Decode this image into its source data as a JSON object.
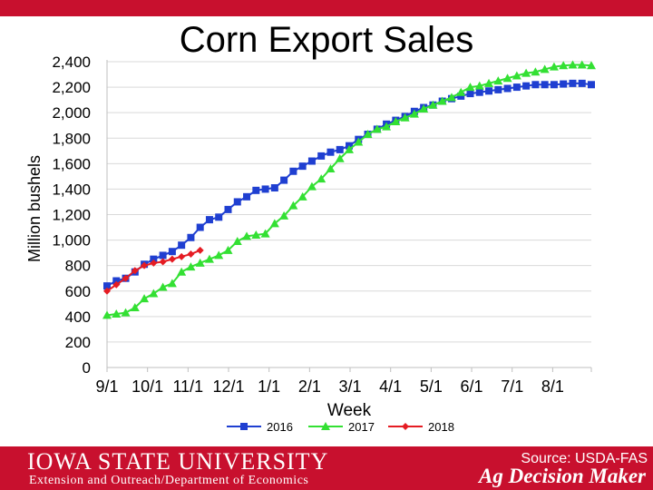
{
  "footer": {
    "university": "IOWA STATE UNIVERSITY",
    "department": "Extension and Outreach/Department of Economics",
    "brand": "Ag Decision Maker",
    "source": "Source: USDA-FAS"
  },
  "colors": {
    "band": "#c8102e",
    "s2016": "#1f3fd1",
    "s2017": "#33e033",
    "s2018": "#e51c23",
    "grid": "#d9d9d9"
  },
  "chart_data": {
    "type": "line",
    "title": "Corn Export Sales",
    "xlabel": "Week",
    "ylabel": "Million bushels",
    "ylim": [
      0,
      2400
    ],
    "yticks": [
      0,
      200,
      400,
      600,
      800,
      1000,
      1200,
      1400,
      1600,
      1800,
      2000,
      2200,
      2400
    ],
    "xtick_labels": [
      "9/1",
      "10/1",
      "11/1",
      "12/1",
      "1/1",
      "2/1",
      "3/1",
      "4/1",
      "5/1",
      "6/1",
      "7/1",
      "8/1"
    ],
    "xlim_weeks": [
      0,
      52
    ],
    "grid": "horizontal",
    "legend_position": "bottom",
    "series": [
      {
        "name": "2016",
        "marker": "square",
        "values": [
          640,
          680,
          700,
          750,
          810,
          850,
          880,
          910,
          960,
          1020,
          1100,
          1160,
          1180,
          1240,
          1300,
          1340,
          1390,
          1400,
          1410,
          1470,
          1540,
          1580,
          1620,
          1660,
          1690,
          1710,
          1740,
          1790,
          1830,
          1870,
          1910,
          1940,
          1970,
          2010,
          2040,
          2060,
          2090,
          2110,
          2130,
          2150,
          2160,
          2170,
          2180,
          2190,
          2200,
          2210,
          2220,
          2220,
          2220,
          2225,
          2230,
          2230,
          2220
        ]
      },
      {
        "name": "2017",
        "marker": "triangle",
        "values": [
          410,
          420,
          430,
          470,
          540,
          580,
          630,
          660,
          750,
          790,
          820,
          850,
          880,
          920,
          990,
          1030,
          1040,
          1050,
          1130,
          1190,
          1270,
          1340,
          1420,
          1480,
          1560,
          1640,
          1710,
          1770,
          1830,
          1870,
          1890,
          1930,
          1960,
          1990,
          2030,
          2060,
          2090,
          2120,
          2160,
          2200,
          2210,
          2230,
          2250,
          2270,
          2290,
          2310,
          2320,
          2340,
          2360,
          2370,
          2375,
          2375,
          2370
        ]
      },
      {
        "name": "2018",
        "marker": "diamond",
        "values": [
          600,
          650,
          700,
          760,
          800,
          820,
          830,
          850,
          870,
          890,
          920
        ]
      }
    ]
  }
}
